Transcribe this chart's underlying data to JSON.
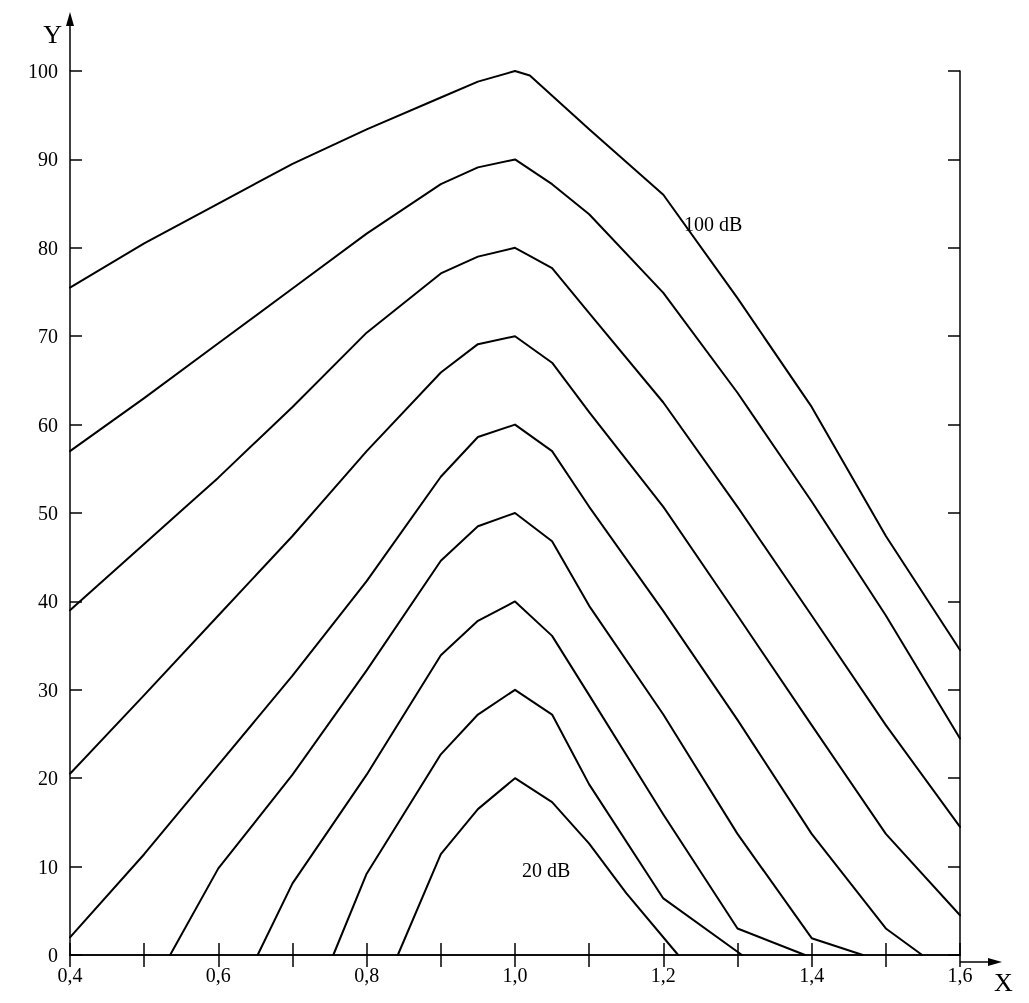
{
  "chart_data": {
    "type": "line",
    "xlabel": "X",
    "ylabel": "Y",
    "xlim": [
      0.4,
      1.6
    ],
    "ylim": [
      0,
      100
    ],
    "xticks": [
      {
        "value": 0.4,
        "label": "0,4"
      },
      {
        "value": 0.5,
        "label": null
      },
      {
        "value": 0.6,
        "label": "0,6"
      },
      {
        "value": 0.7,
        "label": null
      },
      {
        "value": 0.8,
        "label": "0,8"
      },
      {
        "value": 0.9,
        "label": null
      },
      {
        "value": 1.0,
        "label": "1,0"
      },
      {
        "value": 1.1,
        "label": null
      },
      {
        "value": 1.2,
        "label": "1,2"
      },
      {
        "value": 1.3,
        "label": null
      },
      {
        "value": 1.4,
        "label": "1,4"
      },
      {
        "value": 1.5,
        "label": null
      },
      {
        "value": 1.6,
        "label": "1,6"
      }
    ],
    "yticks": [
      0,
      10,
      20,
      30,
      40,
      50,
      60,
      70,
      80,
      90,
      100
    ],
    "grid": false,
    "marker": "none",
    "line_style": "solid",
    "annotations": [
      "100 dB",
      "20 dB"
    ],
    "series": [
      {
        "color": "#000000",
        "x": [
          0.4,
          0.5,
          0.6,
          0.7,
          0.8,
          0.9,
          0.95,
          1.0,
          1.02,
          1.1,
          1.2,
          1.3,
          1.4,
          1.5,
          1.6
        ],
        "values": [
          75.5,
          80.5,
          85,
          89.5,
          93.4,
          97,
          98.8,
          100,
          99.5,
          93.4,
          86,
          74.3,
          62,
          47.4,
          34.5
        ]
      },
      {
        "color": "#000000",
        "x": [
          0.4,
          0.5,
          0.6,
          0.7,
          0.8,
          0.9,
          0.95,
          1.0,
          1.05,
          1.1,
          1.2,
          1.3,
          1.4,
          1.5,
          1.6
        ],
        "values": [
          57,
          63,
          69.2,
          75.4,
          81.6,
          87.2,
          89.1,
          90,
          87.2,
          83.8,
          74.9,
          63.6,
          51.3,
          38.4,
          24.5
        ]
      },
      {
        "color": "#000000",
        "x": [
          0.4,
          0.5,
          0.6,
          0.7,
          0.8,
          0.9,
          0.95,
          1.0,
          1.05,
          1.1,
          1.2,
          1.3,
          1.4,
          1.5,
          1.6
        ],
        "values": [
          39,
          46.5,
          54,
          62,
          70.4,
          77.1,
          79,
          80,
          77.7,
          72.6,
          62.5,
          50.7,
          38.4,
          26,
          14.5
        ]
      },
      {
        "color": "#000000",
        "x": [
          0.4,
          0.5,
          0.6,
          0.7,
          0.8,
          0.9,
          0.95,
          1.0,
          1.05,
          1.1,
          1.2,
          1.3,
          1.4,
          1.5,
          1.6
        ],
        "values": [
          20.5,
          29.4,
          38.4,
          47.4,
          57,
          65.9,
          69.1,
          70,
          67,
          61.4,
          50.7,
          38.4,
          26,
          13.7,
          4.5
        ]
      },
      {
        "color": "#000000",
        "x": [
          0.4,
          0.5,
          0.6,
          0.7,
          0.8,
          0.9,
          0.95,
          1.0,
          1.05,
          1.1,
          1.2,
          1.3,
          1.4,
          1.5,
          1.549
        ],
        "values": [
          2,
          11.4,
          21.5,
          31.6,
          42.3,
          54.1,
          58.6,
          60,
          57,
          50.7,
          38.9,
          26.6,
          13.7,
          3,
          0
        ]
      },
      {
        "color": "#000000",
        "x": [
          0.535,
          0.6,
          0.7,
          0.8,
          0.9,
          0.95,
          1.0,
          1.05,
          1.1,
          1.2,
          1.3,
          1.4,
          1.469
        ],
        "values": [
          0,
          9.8,
          20.4,
          32.2,
          44.6,
          48.5,
          50,
          46.8,
          39.5,
          27.2,
          13.7,
          1.9,
          0
        ]
      },
      {
        "color": "#000000",
        "x": [
          0.653,
          0.7,
          0.8,
          0.9,
          0.95,
          1.0,
          1.05,
          1.1,
          1.2,
          1.3,
          1.391
        ],
        "values": [
          0,
          8.1,
          20.4,
          33.9,
          37.8,
          40,
          36.1,
          29.4,
          15.9,
          3,
          0
        ]
      },
      {
        "color": "#000000",
        "x": [
          0.755,
          0.8,
          0.9,
          0.95,
          1.0,
          1.05,
          1.1,
          1.2,
          1.306
        ],
        "values": [
          0,
          9.2,
          22.7,
          27.2,
          30,
          27.2,
          19.3,
          6.4,
          0
        ]
      },
      {
        "color": "#000000",
        "x": [
          0.842,
          0.9,
          0.95,
          1.0,
          1.05,
          1.1,
          1.15,
          1.22
        ],
        "values": [
          0,
          11.4,
          16.5,
          20,
          17.3,
          12.6,
          7,
          0
        ]
      }
    ]
  }
}
